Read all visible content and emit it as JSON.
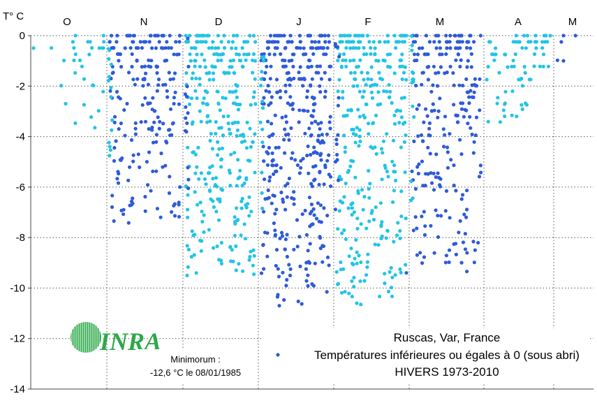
{
  "chart_data": {
    "type": "scatter",
    "title": "Ruscas, Var, France",
    "subtitle": "HIVERS 1973-2010",
    "ylabel": "T° C",
    "ylim": [
      -14,
      0
    ],
    "yticks": [
      0,
      -2,
      -4,
      -6,
      -8,
      -10,
      -12,
      -14
    ],
    "months": [
      "O",
      "N",
      "D",
      "J",
      "F",
      "M",
      "A",
      "M"
    ],
    "grid": true,
    "legend_position": "bottom-right",
    "series": [
      {
        "name": "Températures inférieures ou égales à 0 (sous abri)",
        "color": "#2e5bd8",
        "alt_color": "#22c4e6"
      }
    ],
    "annotation": {
      "label": "Minimorum :",
      "value": "-12,6 °C  le 08/01/1985"
    },
    "logo_text": "INRA",
    "seed": 7
  }
}
